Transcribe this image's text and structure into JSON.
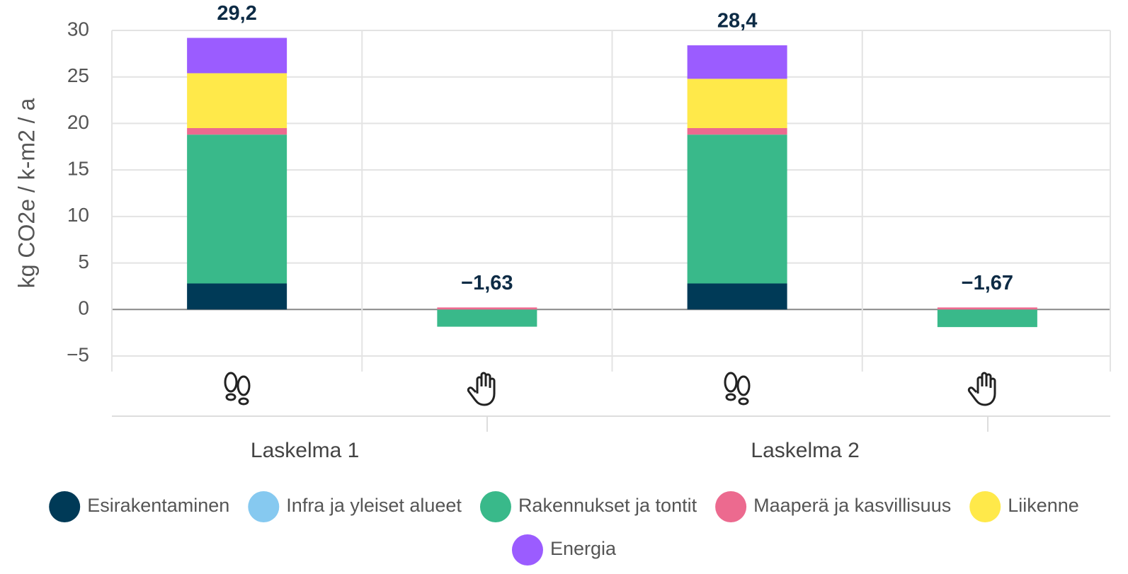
{
  "chart_data": {
    "type": "stacked_bar",
    "y_label": "kg CO2e / k-m2 / a",
    "categories": [
      null,
      null,
      null,
      null
    ],
    "groups": [
      "Laskelma 1",
      "Laskelma 2"
    ],
    "series": [
      {
        "name": "Esirakentaminen",
        "color": "#003a57",
        "values": [
          2.8,
          0,
          2.8,
          0
        ]
      },
      {
        "name": "Infra ja yleiset alueet",
        "color": "#86c9f0",
        "values": [
          0,
          0,
          0,
          0
        ]
      },
      {
        "name": "Rakennukset ja tontit",
        "color": "#39b98a",
        "values": [
          16.0,
          -1.85,
          16.0,
          -1.89
        ]
      },
      {
        "name": "Maaperä ja kasvillisuus",
        "color": "#ec6a8f",
        "values": [
          0.7,
          0.22,
          0.7,
          0.22
        ]
      },
      {
        "name": "Liikenne",
        "color": "#ffe94a",
        "values": [
          5.9,
          0,
          5.3,
          0
        ]
      },
      {
        "name": "Energia",
        "color": "#9b5cff",
        "values": [
          3.8,
          0,
          3.6,
          0
        ]
      }
    ],
    "totals": [
      29.2,
      -1.63,
      28.4,
      -1.67
    ],
    "total_labels": [
      "29,2",
      "−1,63",
      "28,4",
      "−1,67"
    ],
    "ylim": [
      -5,
      30
    ],
    "yticks": [
      {
        "value": -5,
        "label": "−5"
      },
      0,
      5,
      10,
      15,
      20,
      25,
      30
    ],
    "grid": true
  }
}
